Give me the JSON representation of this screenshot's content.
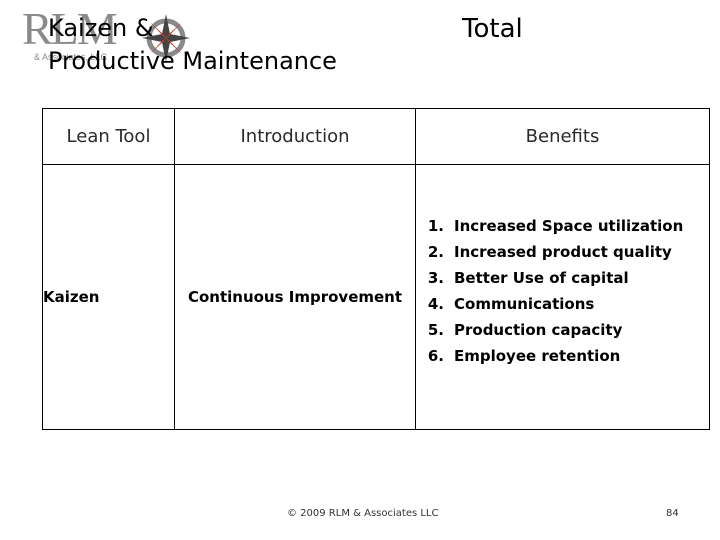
{
  "logo": {
    "text": "RLM",
    "subtext": "& Associates, LLC"
  },
  "title": {
    "line1": "Kaizen &",
    "line2": "Productive Maintenance",
    "right": "Total"
  },
  "table": {
    "headers": [
      "Lean Tool",
      "Introduction",
      "Benefits"
    ],
    "row": {
      "tool": "Kaizen",
      "introduction": "Continuous Improvement",
      "benefits": [
        {
          "num": "1.",
          "text": "Increased Space utilization"
        },
        {
          "num": "2.",
          "text": "Increased product quality"
        },
        {
          "num": "3.",
          "text": "Better Use of capital"
        },
        {
          "num": "4.",
          "text": "Communications"
        },
        {
          "num": "5.",
          "text": "Production capacity"
        },
        {
          "num": "6.",
          "text": "Employee retention"
        }
      ]
    }
  },
  "footer": {
    "copyright": "© 2009 RLM & Associates LLC",
    "page": "84"
  }
}
